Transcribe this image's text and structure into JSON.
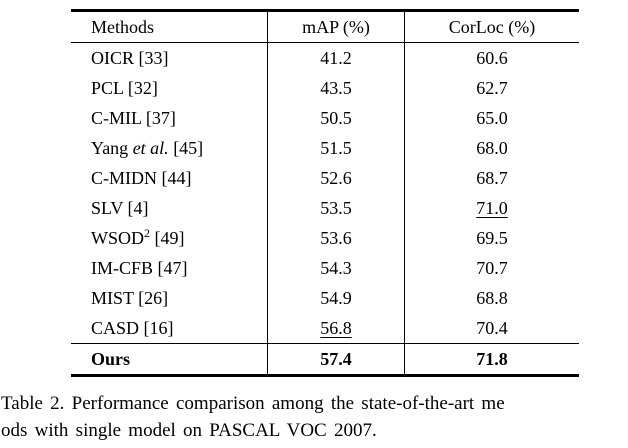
{
  "colors": {
    "background": "#ffffff",
    "text": "#000000",
    "rule": "#000000"
  },
  "table": {
    "headers": [
      "Methods",
      "mAP (%)",
      "CorLoc (%)"
    ],
    "rows": [
      {
        "method": "OICR [33]",
        "map": "41.2",
        "corloc": "60.6"
      },
      {
        "method": "PCL [32]",
        "map": "43.5",
        "corloc": "62.7"
      },
      {
        "method": "C-MIL [37]",
        "map": "50.5",
        "corloc": "65.0"
      },
      {
        "method": "Yang et al. [45]",
        "method_parts": [
          {
            "text": "Yang "
          },
          {
            "text": "et al.",
            "italic": true
          },
          {
            "text": " [45]"
          }
        ],
        "map": "51.5",
        "corloc": "68.0"
      },
      {
        "method": "C-MIDN [44]",
        "map": "52.6",
        "corloc": "68.7"
      },
      {
        "method": "SLV [4]",
        "map": "53.5",
        "corloc": "71.0",
        "corloc_underline": true
      },
      {
        "method": "WSOD2 [49]",
        "method_parts": [
          {
            "text": "WSOD"
          },
          {
            "text": "2",
            "sup": true
          },
          {
            "text": " [49]"
          }
        ],
        "map": "53.6",
        "corloc": "69.5"
      },
      {
        "method": "IM-CFB [47]",
        "map": "54.3",
        "corloc": "70.7"
      },
      {
        "method": "MIST [26]",
        "map": "54.9",
        "corloc": "68.8"
      },
      {
        "method": "CASD  [16]",
        "map": "56.8",
        "map_underline": true,
        "corloc": "70.4"
      },
      {
        "method": "Ours",
        "bold": true,
        "map": "57.4",
        "corloc": "71.8"
      }
    ]
  },
  "caption": {
    "line1": "Table 2. Performance comparison among the state-of-the-art me",
    "line2": "ods with single model on PASCAL VOC 2007."
  }
}
